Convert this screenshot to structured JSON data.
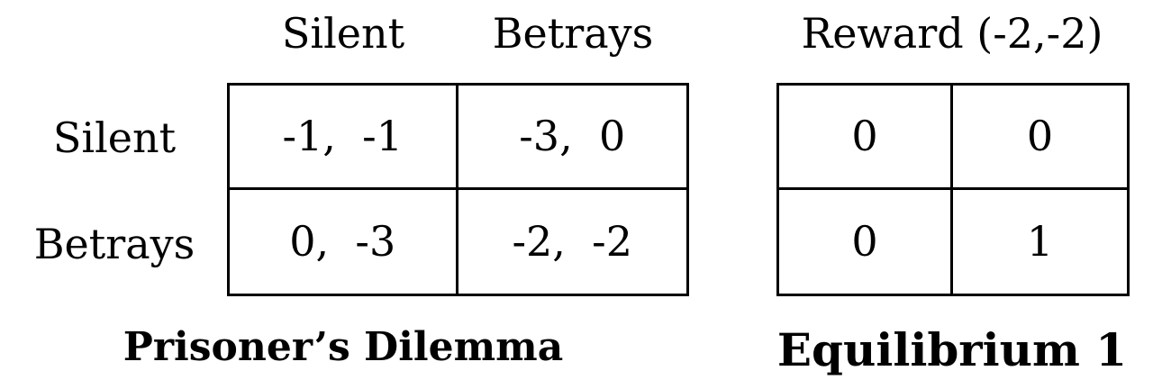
{
  "payoff_matrix": {
    "column_labels": [
      "Silent",
      "Betrays"
    ],
    "row_labels": [
      "Silent",
      "Betrays"
    ],
    "cells": [
      [
        "-1,  -1",
        "-3,  0"
      ],
      [
        "0,  -3",
        "-2,  -2"
      ]
    ],
    "caption": "Prisoner’s Dilemma"
  },
  "reward_matrix": {
    "title": "Reward (-2,-2)",
    "cells": [
      [
        "0",
        "0"
      ],
      [
        "0",
        "1"
      ]
    ],
    "caption": "Equilibrium 1"
  }
}
